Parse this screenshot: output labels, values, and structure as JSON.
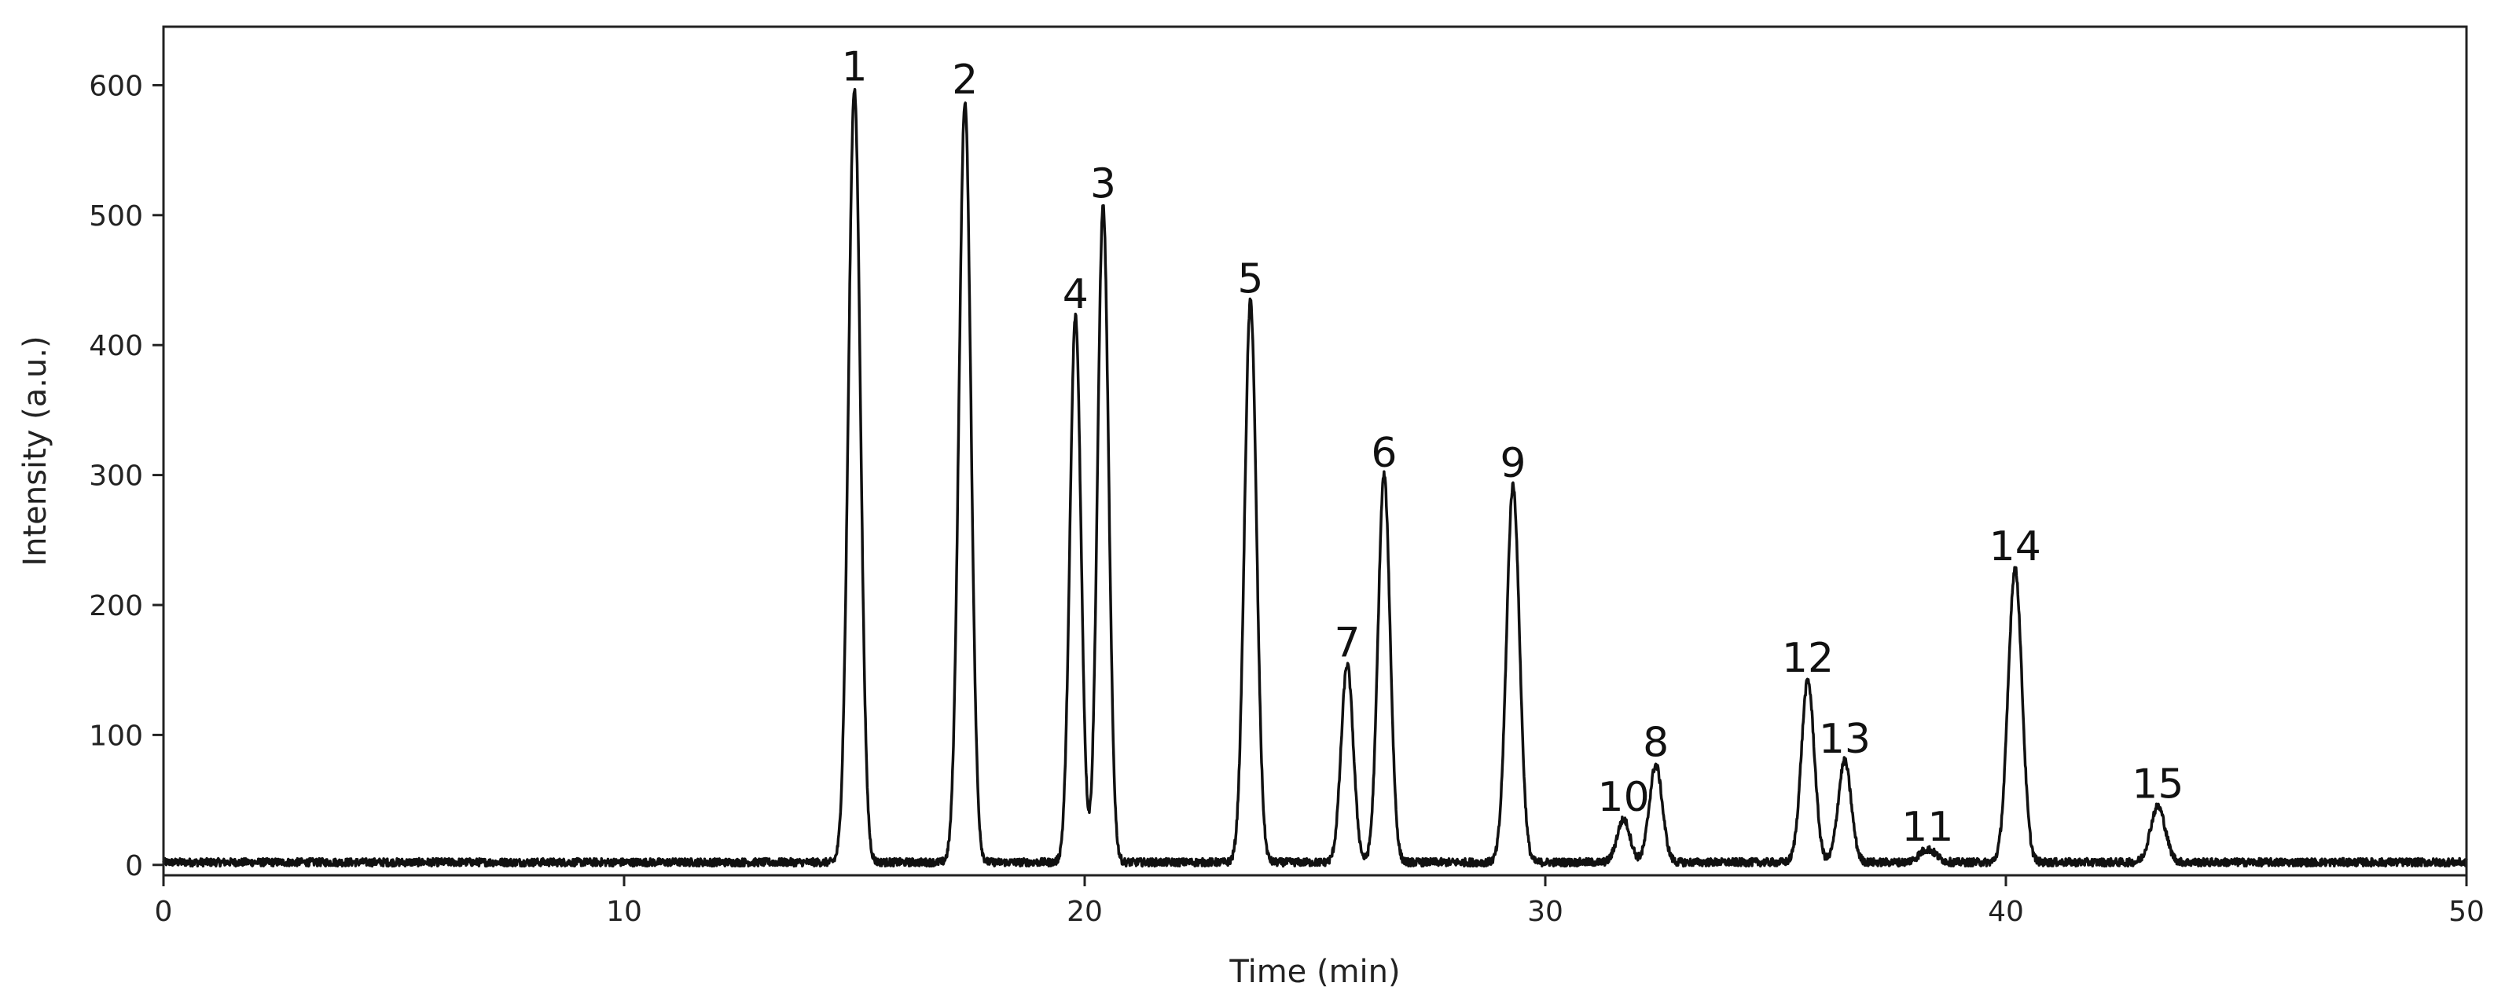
{
  "chart_data": {
    "type": "line",
    "title": "",
    "xlabel": "Time (min)",
    "ylabel": "Intensity (a.u.)",
    "xlim": [
      0,
      50
    ],
    "ylim": [
      -8,
      645
    ],
    "x_ticks": [
      0,
      10,
      20,
      30,
      40,
      50
    ],
    "y_ticks": [
      0,
      100,
      200,
      300,
      400,
      500,
      600
    ],
    "grid": false,
    "legend": "none",
    "line_color": "#111111",
    "baseline": 2,
    "noise_amplitude": 3,
    "series": [
      {
        "peaks": [
          {
            "label": "1",
            "x": 15.0,
            "y": 595,
            "width": 0.13
          },
          {
            "label": "2",
            "x": 17.4,
            "y": 585,
            "width": 0.13
          },
          {
            "label": "4",
            "x": 19.8,
            "y": 420,
            "width": 0.12
          },
          {
            "label": "3",
            "x": 20.4,
            "y": 505,
            "width": 0.12
          },
          {
            "label": "5",
            "x": 23.6,
            "y": 432,
            "width": 0.13
          },
          {
            "label": "7",
            "x": 25.7,
            "y": 152,
            "width": 0.13
          },
          {
            "label": "6",
            "x": 26.5,
            "y": 298,
            "width": 0.13
          },
          {
            "label": "9",
            "x": 29.3,
            "y": 290,
            "width": 0.14
          },
          {
            "label": "10",
            "x": 31.7,
            "y": 33,
            "width": 0.14
          },
          {
            "label": "8",
            "x": 32.4,
            "y": 75,
            "width": 0.14
          },
          {
            "label": "12",
            "x": 35.7,
            "y": 140,
            "width": 0.14
          },
          {
            "label": "13",
            "x": 36.5,
            "y": 78,
            "width": 0.14
          },
          {
            "label": "11",
            "x": 38.3,
            "y": 10,
            "width": 0.18
          },
          {
            "label": "14",
            "x": 40.2,
            "y": 226,
            "width": 0.15
          },
          {
            "label": "15",
            "x": 43.3,
            "y": 43,
            "width": 0.16
          }
        ]
      }
    ]
  }
}
